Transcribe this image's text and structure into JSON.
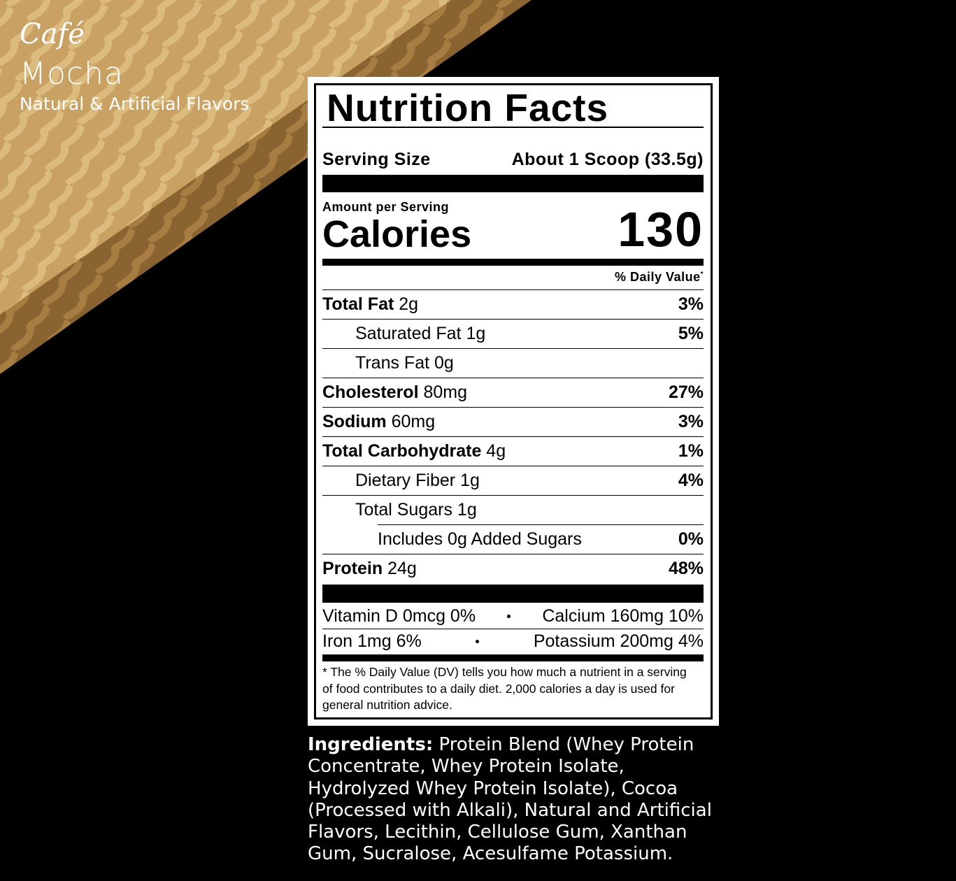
{
  "flavor": {
    "script": "Café",
    "name": "Mocha",
    "note": "Natural & Artificial Flavors"
  },
  "label": {
    "title": "Nutrition Facts",
    "serving_label": "Serving Size",
    "serving_value": "About 1 Scoop (33.5g)",
    "amount_per_serving": "Amount per Serving",
    "calories_label": "Calories",
    "calories": 130,
    "dv_header": "% Daily Value",
    "dv_mark": "*",
    "nutrients": [
      {
        "name": "Total Fat",
        "amount": "2g",
        "dv": "3%",
        "bold": true,
        "indent": 0
      },
      {
        "name": "Saturated Fat",
        "amount": "1g",
        "dv": "5%",
        "bold": false,
        "indent": 1
      },
      {
        "name": "Trans Fat",
        "amount": "0g",
        "bold": false,
        "indent": 1
      },
      {
        "name": "Cholesterol",
        "amount": "80mg",
        "dv": "27%",
        "bold": true,
        "indent": 0
      },
      {
        "name": "Sodium",
        "amount": "60mg",
        "dv": "3%",
        "bold": true,
        "indent": 0
      },
      {
        "name": "Total Carbohydrate",
        "amount": "4g",
        "dv": "1%",
        "bold": true,
        "indent": 0
      },
      {
        "name": "Dietary Fiber",
        "amount": "1g",
        "dv": "4%",
        "bold": false,
        "indent": 1
      },
      {
        "name": "Total Sugars",
        "amount": "1g",
        "bold": false,
        "indent": 1
      },
      {
        "name": "Includes 0g Added Sugars",
        "dv": "0%",
        "bold": false,
        "indent": 2
      },
      {
        "name": "Protein",
        "amount": "24g",
        "dv": "48%",
        "bold": true,
        "indent": 0
      }
    ],
    "vitamins": [
      [
        "Vitamin D 0mcg 0%",
        "Calcium 160mg 10%"
      ],
      [
        "Iron 1mg 6%",
        "Potassium 200mg 4%"
      ]
    ],
    "footnote": "* The % Daily Value (DV) tells you how much a nutrient in a serving of food contributes to a daily diet. 2,000 calories a day is used for general nutrition advice."
  },
  "ingredients": {
    "label": "Ingredients:",
    "text": "Protein Blend (Whey Protein Concentrate, Whey Protein Isolate, Hydrolyzed Whey Protein Isolate), Cocoa (Processed with Alkali), Natural and Artificial Flavors, Lecithin, Cellulose Gum, Xanthan Gum, Sucralose, Acesulfame Potassium."
  }
}
